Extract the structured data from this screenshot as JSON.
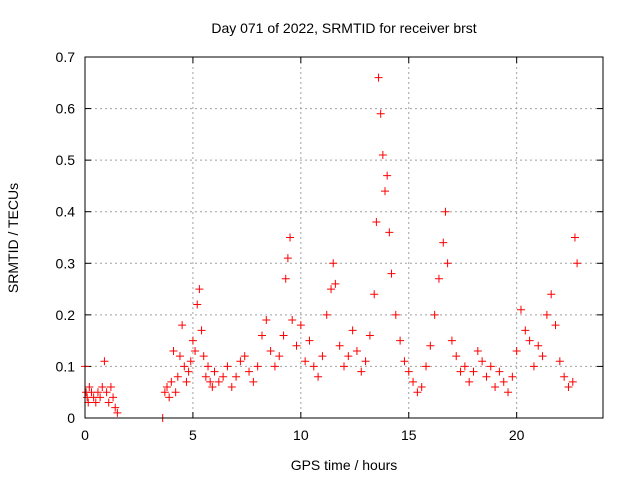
{
  "chart_data": {
    "type": "scatter",
    "title": "Day 071 of 2022, SRMTID for receiver brst",
    "xlabel": "GPS time / hours",
    "ylabel": "SRMTID / TECUs",
    "xlim": [
      0,
      24
    ],
    "ylim": [
      0,
      0.7
    ],
    "xticks": [
      0,
      5,
      10,
      15,
      20
    ],
    "xtick_labels": [
      "0",
      "5",
      "10",
      "15",
      "20"
    ],
    "yticks": [
      0,
      0.1,
      0.2,
      0.3,
      0.4,
      0.5,
      0.6,
      0.7
    ],
    "ytick_labels": [
      "0",
      "0.1",
      "0.2",
      "0.3",
      "0.4",
      "0.5",
      "0.6",
      "0.7"
    ],
    "grid": true,
    "marker": "plus",
    "color": "#ff0000",
    "series": [
      {
        "name": "SRMTID",
        "x": [
          0.0,
          0.05,
          0.1,
          0.15,
          0.2,
          0.3,
          0.4,
          0.5,
          0.6,
          0.7,
          0.8,
          0.9,
          1.0,
          1.1,
          1.2,
          1.3,
          1.4,
          1.5,
          3.6,
          3.7,
          3.8,
          3.9,
          4.0,
          4.1,
          4.2,
          4.3,
          4.4,
          4.5,
          4.6,
          4.7,
          4.8,
          4.9,
          5.0,
          5.1,
          5.2,
          5.3,
          5.4,
          5.5,
          5.6,
          5.7,
          5.8,
          5.9,
          6.0,
          6.2,
          6.4,
          6.6,
          6.8,
          7.0,
          7.2,
          7.4,
          7.6,
          7.8,
          8.0,
          8.2,
          8.4,
          8.6,
          8.8,
          9.0,
          9.2,
          9.3,
          9.4,
          9.5,
          9.6,
          9.8,
          10.0,
          10.2,
          10.4,
          10.6,
          10.8,
          11.0,
          11.2,
          11.4,
          11.5,
          11.6,
          11.8,
          12.0,
          12.2,
          12.4,
          12.6,
          12.8,
          13.0,
          13.2,
          13.4,
          13.5,
          13.6,
          13.7,
          13.8,
          13.9,
          14.0,
          14.1,
          14.2,
          14.4,
          14.6,
          14.8,
          15.0,
          15.2,
          15.4,
          15.6,
          15.8,
          16.0,
          16.2,
          16.4,
          16.6,
          16.7,
          16.8,
          17.0,
          17.2,
          17.4,
          17.6,
          17.8,
          18.0,
          18.2,
          18.4,
          18.6,
          18.8,
          19.0,
          19.2,
          19.4,
          19.6,
          19.8,
          20.0,
          20.2,
          20.4,
          20.6,
          20.8,
          21.0,
          21.2,
          21.4,
          21.6,
          21.8,
          22.0,
          22.2,
          22.4,
          22.6,
          22.7,
          22.8
        ],
        "y": [
          0.1,
          0.05,
          0.04,
          0.03,
          0.06,
          0.05,
          0.04,
          0.03,
          0.05,
          0.04,
          0.06,
          0.11,
          0.05,
          0.03,
          0.06,
          0.04,
          0.02,
          0.01,
          0.0,
          0.05,
          0.06,
          0.04,
          0.07,
          0.13,
          0.05,
          0.08,
          0.12,
          0.18,
          0.1,
          0.07,
          0.09,
          0.11,
          0.15,
          0.13,
          0.22,
          0.25,
          0.17,
          0.12,
          0.08,
          0.1,
          0.07,
          0.06,
          0.09,
          0.07,
          0.08,
          0.1,
          0.06,
          0.08,
          0.11,
          0.12,
          0.09,
          0.07,
          0.1,
          0.16,
          0.19,
          0.13,
          0.1,
          0.12,
          0.16,
          0.27,
          0.31,
          0.35,
          0.19,
          0.14,
          0.18,
          0.11,
          0.15,
          0.1,
          0.08,
          0.12,
          0.2,
          0.25,
          0.3,
          0.26,
          0.14,
          0.1,
          0.12,
          0.17,
          0.13,
          0.09,
          0.11,
          0.16,
          0.24,
          0.38,
          0.66,
          0.59,
          0.51,
          0.44,
          0.47,
          0.36,
          0.28,
          0.2,
          0.15,
          0.11,
          0.09,
          0.07,
          0.05,
          0.06,
          0.1,
          0.14,
          0.2,
          0.27,
          0.34,
          0.4,
          0.3,
          0.15,
          0.12,
          0.09,
          0.1,
          0.07,
          0.09,
          0.13,
          0.11,
          0.08,
          0.1,
          0.06,
          0.09,
          0.07,
          0.05,
          0.08,
          0.13,
          0.21,
          0.17,
          0.15,
          0.1,
          0.14,
          0.12,
          0.2,
          0.24,
          0.18,
          0.11,
          0.08,
          0.06,
          0.07,
          0.35,
          0.3
        ]
      }
    ]
  }
}
